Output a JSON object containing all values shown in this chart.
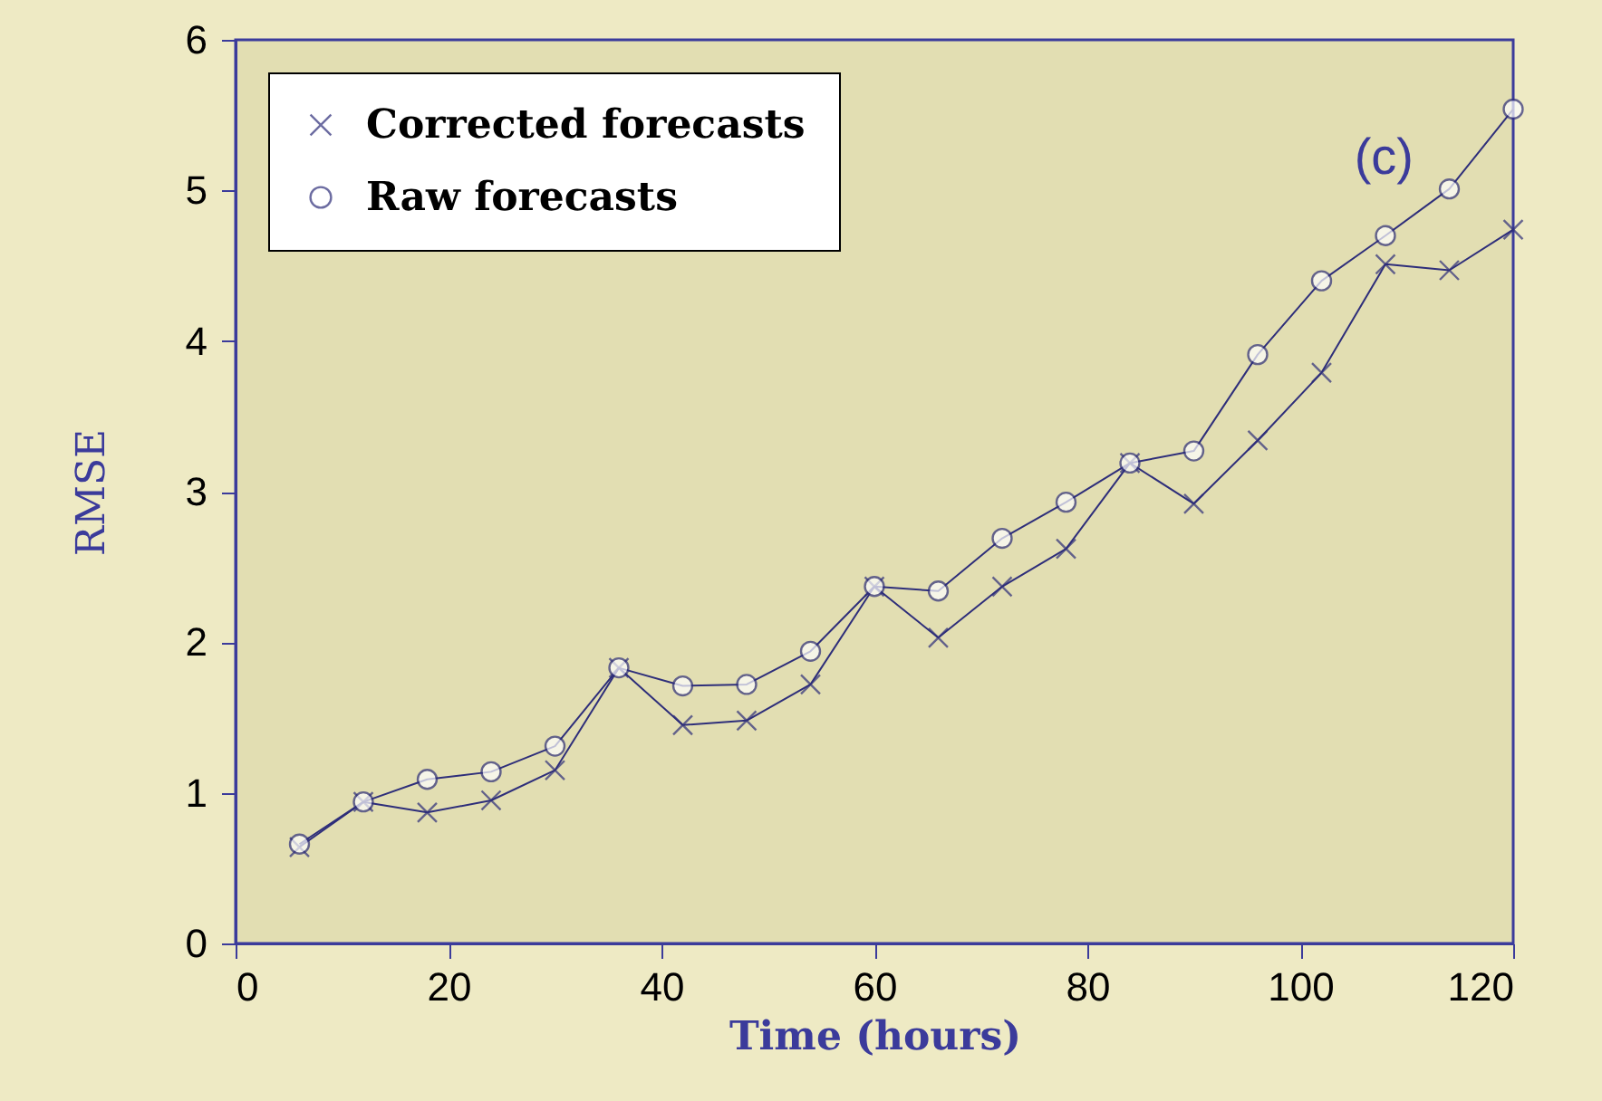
{
  "chart_data": {
    "type": "line",
    "xlabel": "Time  (hours)",
    "ylabel": "RMSE",
    "x": [
      6,
      12,
      18,
      24,
      30,
      36,
      42,
      48,
      54,
      60,
      66,
      72,
      78,
      84,
      90,
      96,
      102,
      108,
      114,
      120
    ],
    "series": [
      {
        "name": "Corrected forecasts",
        "color": "#2e2e7a",
        "marker": "cross",
        "values": [
          0.64,
          0.94,
          0.87,
          0.95,
          1.15,
          1.83,
          1.45,
          1.48,
          1.72,
          2.37,
          2.03,
          2.37,
          2.62,
          3.19,
          2.92,
          3.34,
          3.79,
          4.51,
          4.47,
          4.74
        ]
      },
      {
        "name": "Raw forecasts",
        "color": "#2e2e7a",
        "marker": "circle",
        "values": [
          0.66,
          0.94,
          1.09,
          1.14,
          1.31,
          1.83,
          1.71,
          1.72,
          1.94,
          2.37,
          2.34,
          2.69,
          2.93,
          3.19,
          3.27,
          3.91,
          4.4,
          4.7,
          5.01,
          5.54
        ]
      }
    ],
    "xlim": [
      0,
      120
    ],
    "xticks": [
      0,
      20,
      40,
      60,
      80,
      100,
      120
    ],
    "ylim": [
      0,
      6
    ],
    "yticks": [
      0,
      1,
      2,
      3,
      4,
      5,
      6
    ],
    "annotations": [
      "(c)"
    ],
    "grid": false,
    "legend": "top left",
    "line_style": "solid"
  }
}
